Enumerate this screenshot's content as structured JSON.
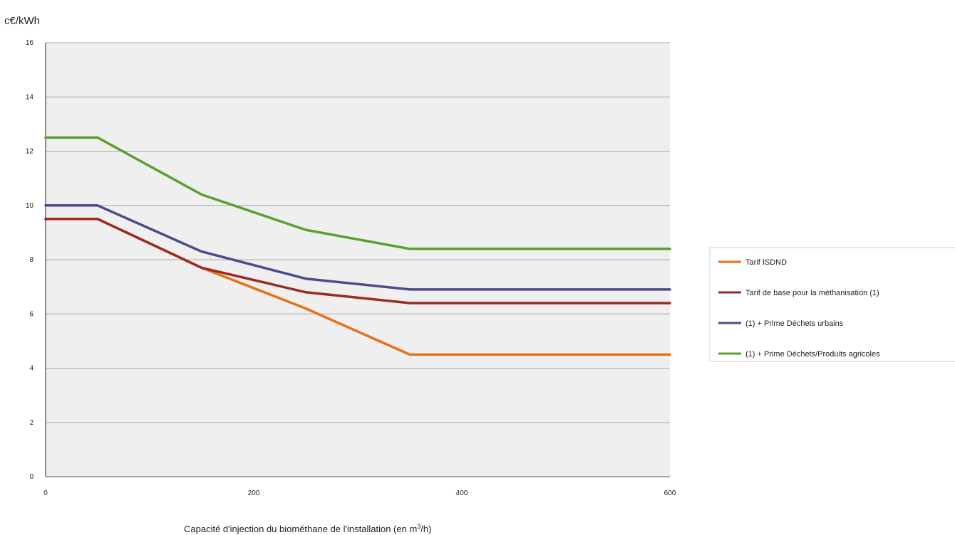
{
  "chart_data": {
    "type": "line",
    "ylabel": "c€/kWh",
    "xlabel_main": "Capacité d'injection du biométhane de l'installation (en m",
    "xlabel_sup": "3",
    "xlabel_end": "/h)",
    "xlim": [
      0,
      600
    ],
    "ylim": [
      0,
      16
    ],
    "xticks": [
      0,
      200,
      400,
      600
    ],
    "yticks": [
      0,
      2,
      4,
      6,
      8,
      10,
      12,
      14,
      16
    ],
    "grid": true,
    "legend_position": "right",
    "series": [
      {
        "name": "Tarif ISDND",
        "color": "#e8701a",
        "x": [
          0,
          50,
          150,
          250,
          350,
          600
        ],
        "y": [
          9.5,
          9.5,
          7.7,
          6.2,
          4.5,
          4.5
        ]
      },
      {
        "name": "Tarif de base pour la méthanisation (1)",
        "color": "#9b2a22",
        "x": [
          0,
          50,
          150,
          250,
          350,
          600
        ],
        "y": [
          9.5,
          9.5,
          7.7,
          6.8,
          6.4,
          6.4
        ]
      },
      {
        "name": "(1) + Prime Déchets urbains",
        "color": "#4f4a8c",
        "x": [
          0,
          50,
          150,
          250,
          350,
          600
        ],
        "y": [
          10.0,
          10.0,
          8.3,
          7.3,
          6.9,
          6.9
        ]
      },
      {
        "name": "(1) + Prime Déchets/Produits agricoles",
        "color": "#5aa02c",
        "x": [
          0,
          50,
          150,
          250,
          350,
          600
        ],
        "y": [
          12.5,
          12.5,
          10.4,
          9.1,
          8.4,
          8.4
        ]
      }
    ]
  }
}
